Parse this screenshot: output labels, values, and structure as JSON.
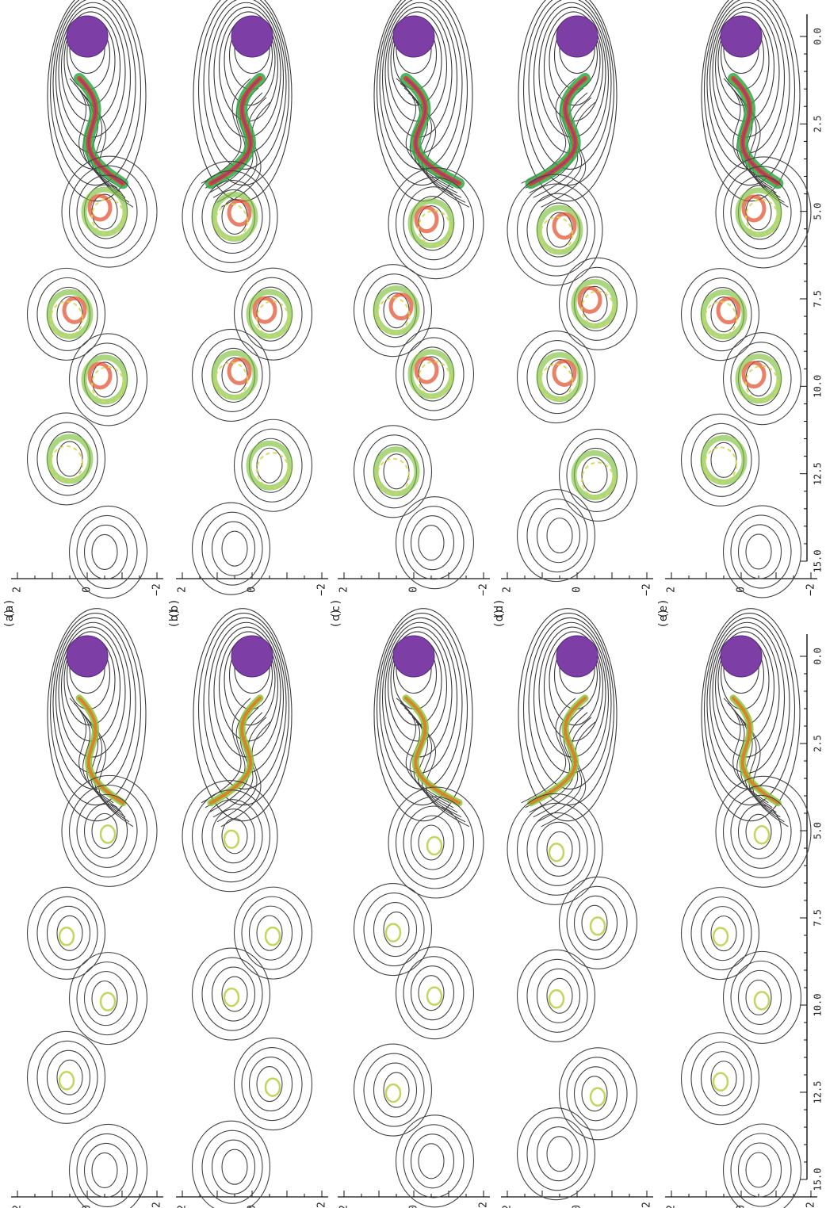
{
  "figure": {
    "panels": [
      {
        "label": "(a)"
      },
      {
        "label": "(b)"
      },
      {
        "label": "(c)"
      },
      {
        "label": "(d)"
      },
      {
        "label": "(e)"
      }
    ],
    "x_ticks": [
      "0.0",
      "2.5",
      "5.0",
      "7.5",
      "10.0",
      "12.5",
      "15.0"
    ],
    "y_ticks": [
      "2",
      "0",
      "−2"
    ],
    "columns": [
      {
        "id": "left"
      },
      {
        "id": "right"
      }
    ]
  }
}
